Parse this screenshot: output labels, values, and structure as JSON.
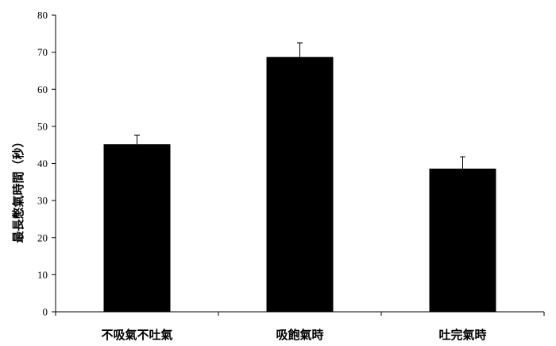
{
  "chart_data": {
    "type": "bar",
    "title": "",
    "xlabel": "",
    "ylabel": "最長憋氣時間（秒）",
    "categories": [
      "不吸氣不吐氣",
      "吸飽氣時",
      "吐完氣時"
    ],
    "values": [
      45.2,
      68.7,
      38.6
    ],
    "error_bars": [
      2.4,
      3.8,
      3.2
    ],
    "ylim": [
      0,
      80
    ],
    "yticks": [
      0,
      10,
      20,
      30,
      40,
      50,
      60,
      70,
      80
    ],
    "bar_color": "#000000",
    "grid": false,
    "legend": "none"
  }
}
